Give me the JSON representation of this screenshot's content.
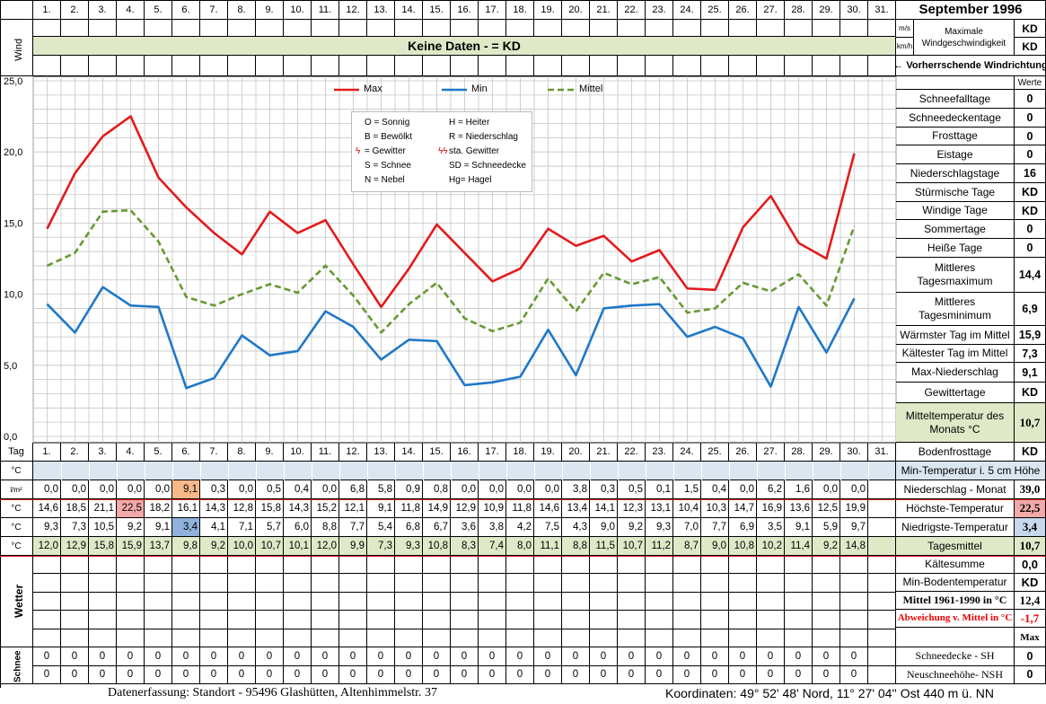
{
  "title": "September 1996",
  "days": [
    "1.",
    "2.",
    "3.",
    "4.",
    "5.",
    "6.",
    "7.",
    "8.",
    "9.",
    "10.",
    "11.",
    "12.",
    "13.",
    "14.",
    "15.",
    "16.",
    "17.",
    "18.",
    "19.",
    "20.",
    "21.",
    "22.",
    "23.",
    "24.",
    "25.",
    "26.",
    "27.",
    "28.",
    "29.",
    "30.",
    "31."
  ],
  "wind": {
    "label": "Wind",
    "banner": "Keine Daten -  = KD",
    "unit_ms": "m/s",
    "unit_kmh": "km/h",
    "max_label_1": "Maximale",
    "max_label_2": "Windgeschwindigkeit",
    "max_ms": "KD",
    "max_kmh": "KD",
    "direction_label": "← Vorherrschende Windrichtung"
  },
  "chart_legend": {
    "max": "Max",
    "min": "Min",
    "mittel": "Mittel",
    "codes": [
      [
        "O = Sonnig",
        "H = Heiter"
      ],
      [
        "B = Bewölkt",
        "R = Niederschlag"
      ],
      [
        "= Gewitter",
        "sta. Gewitter"
      ],
      [
        "S = Schnee",
        "SD = Schneedecke"
      ],
      [
        "N = Nebel",
        "Hg= Hagel"
      ]
    ]
  },
  "chart_data": {
    "type": "line",
    "x": [
      1,
      2,
      3,
      4,
      5,
      6,
      7,
      8,
      9,
      10,
      11,
      12,
      13,
      14,
      15,
      16,
      17,
      18,
      19,
      20,
      21,
      22,
      23,
      24,
      25,
      26,
      27,
      28,
      29,
      30
    ],
    "ylim": [
      0,
      25
    ],
    "yticks": [
      "0,0",
      "5,0",
      "10,0",
      "15,0",
      "20,0",
      "25,0"
    ],
    "colors": {
      "max": "#e31a1c",
      "min": "#1f78c8",
      "mittel": "#669933"
    },
    "series": [
      {
        "name": "Max",
        "values": [
          14.6,
          18.5,
          21.1,
          22.5,
          18.2,
          16.1,
          14.3,
          12.8,
          15.8,
          14.3,
          15.2,
          12.1,
          9.1,
          11.8,
          14.9,
          12.9,
          10.9,
          11.8,
          14.6,
          13.4,
          14.1,
          12.3,
          13.1,
          10.4,
          10.3,
          14.7,
          16.9,
          13.6,
          12.5,
          19.9
        ]
      },
      {
        "name": "Min",
        "values": [
          9.3,
          7.3,
          10.5,
          9.2,
          9.1,
          3.4,
          4.1,
          7.1,
          5.7,
          6.0,
          8.8,
          7.7,
          5.4,
          6.8,
          6.7,
          3.6,
          3.8,
          4.2,
          7.5,
          4.3,
          9.0,
          9.2,
          9.3,
          7.0,
          7.7,
          6.9,
          3.5,
          9.1,
          5.9,
          9.7
        ]
      },
      {
        "name": "Mittel",
        "values": [
          12.0,
          12.9,
          15.8,
          15.9,
          13.7,
          9.8,
          9.2,
          10.0,
          10.7,
          10.1,
          12.0,
          9.9,
          7.3,
          9.3,
          10.8,
          8.3,
          7.4,
          8.0,
          11.1,
          8.8,
          11.5,
          10.7,
          11.2,
          8.7,
          9.0,
          10.8,
          10.2,
          11.4,
          9.2,
          14.8
        ]
      }
    ]
  },
  "table": {
    "tag_label": "Tag",
    "unit_c": "°C",
    "unit_lm2": "l/m²",
    "precip": [
      "0,0",
      "0,0",
      "0,0",
      "0,0",
      "0,0",
      "9,1",
      "0,3",
      "0,0",
      "0,5",
      "0,4",
      "0,0",
      "6,8",
      "5,8",
      "0,9",
      "0,8",
      "0,0",
      "0,0",
      "0,0",
      "0,0",
      "3,8",
      "0,3",
      "0,5",
      "0,1",
      "1,5",
      "0,4",
      "0,0",
      "6,2",
      "1,6",
      "0,0",
      "0,0",
      ""
    ],
    "max": [
      "14,6",
      "18,5",
      "21,1",
      "22,5",
      "18,2",
      "16,1",
      "14,3",
      "12,8",
      "15,8",
      "14,3",
      "15,2",
      "12,1",
      "9,1",
      "11,8",
      "14,9",
      "12,9",
      "10,9",
      "11,8",
      "14,6",
      "13,4",
      "14,1",
      "12,3",
      "13,1",
      "10,4",
      "10,3",
      "14,7",
      "16,9",
      "13,6",
      "12,5",
      "19,9",
      ""
    ],
    "min": [
      "9,3",
      "7,3",
      "10,5",
      "9,2",
      "9,1",
      "3,4",
      "4,1",
      "7,1",
      "5,7",
      "6,0",
      "8,8",
      "7,7",
      "5,4",
      "6,8",
      "6,7",
      "3,6",
      "3,8",
      "4,2",
      "7,5",
      "4,3",
      "9,0",
      "9,2",
      "9,3",
      "7,0",
      "7,7",
      "6,9",
      "3,5",
      "9,1",
      "5,9",
      "9,7",
      ""
    ],
    "mittel": [
      "12,0",
      "12,9",
      "15,8",
      "15,9",
      "13,7",
      "9,8",
      "9,2",
      "10,0",
      "10,7",
      "10,1",
      "12,0",
      "9,9",
      "7,3",
      "9,3",
      "10,8",
      "8,3",
      "7,4",
      "8,0",
      "11,1",
      "8,8",
      "11,5",
      "10,7",
      "11,2",
      "8,7",
      "9,0",
      "10,8",
      "10,2",
      "11,4",
      "9,2",
      "14,8",
      ""
    ],
    "wetter_label": "Wetter",
    "schnee_label": "Schnee",
    "sh": [
      "0",
      "0",
      "0",
      "0",
      "0",
      "0",
      "0",
      "0",
      "0",
      "0",
      "0",
      "0",
      "0",
      "0",
      "0",
      "0",
      "0",
      "0",
      "0",
      "0",
      "0",
      "0",
      "0",
      "0",
      "0",
      "0",
      "0",
      "0",
      "0",
      "0",
      ""
    ],
    "nsh": [
      "0",
      "0",
      "0",
      "0",
      "0",
      "0",
      "0",
      "0",
      "0",
      "0",
      "0",
      "0",
      "0",
      "0",
      "0",
      "0",
      "0",
      "0",
      "0",
      "0",
      "0",
      "0",
      "0",
      "0",
      "0",
      "0",
      "0",
      "0",
      "0",
      "0",
      ""
    ]
  },
  "stats": {
    "werte": "Werte",
    "rows": [
      [
        "Schneefalltage",
        "0"
      ],
      [
        "Schneedeckentage",
        "0"
      ],
      [
        "Frosttage",
        "0"
      ],
      [
        "Eistage",
        "0"
      ],
      [
        "Niederschlagstage",
        "16"
      ],
      [
        "Stürmische Tage",
        "KD"
      ],
      [
        "Windige Tage",
        "KD"
      ],
      [
        "Sommertage",
        "0"
      ],
      [
        "Heiße Tage",
        "0"
      ]
    ],
    "mittl_max_1": "Mittleres",
    "mittl_max_2": "Tagesmaximum",
    "mittl_max": "14,4",
    "mittl_min_1": "Mittleres",
    "mittl_min_2": "Tagesminimum",
    "mittl_min": "6,9",
    "waermster": "Wärmster Tag im Mittel",
    "waermster_v": "15,9",
    "kaeltester": "Kältester Tag im Mittel",
    "kaeltester_v": "7,3",
    "max_nied": "Max-Niederschlag",
    "max_nied_v": "9,1",
    "gewitter": "Gewittertage",
    "gewitter_v": "KD",
    "mitteltemp_1": "Mitteltemperatur des",
    "mitteltemp_2": "Monats °C",
    "mitteltemp_v": "10,7",
    "bodenfrost": "Bodenfrosttage",
    "bodenfrost_v": "KD",
    "min5cm": "Min-Temperatur i. 5 cm Höhe",
    "nied_monat": "Niederschlag - Monat",
    "nied_monat_v": "39,0",
    "hoechste": "Höchste-Temperatur",
    "hoechste_v": "22,5",
    "niedrigste": "Niedrigste-Temperatur",
    "niedrigste_v": "3,4",
    "tagesmittel": "Tagesmittel",
    "tagesmittel_v": "10,7",
    "kaeltesumme": "Kältesumme",
    "kaeltesumme_v": "0,0",
    "minboden": "Min-Bodentemperatur",
    "minboden_v": "KD",
    "mittel6190": "Mittel 1961-1990 in °C",
    "mittel6190_v": "12,4",
    "abweichung": "Abweichung v. Mittel in °C",
    "abweichung_v": "-1,7",
    "max_hdr": "Max",
    "sh_label": "Schneedecke -  SH",
    "sh_v": "0",
    "nsh_label": "Neuschneehöhe- NSH",
    "nsh_v": "0"
  },
  "footer": {
    "left": "Datenerfassung:  Standort -  95496  Glashütten, Altenhimmelstr. 37",
    "right": "Koordinaten:  49° 52' 48' Nord,  11° 27' 04'' Ost   440 m ü. NN"
  }
}
